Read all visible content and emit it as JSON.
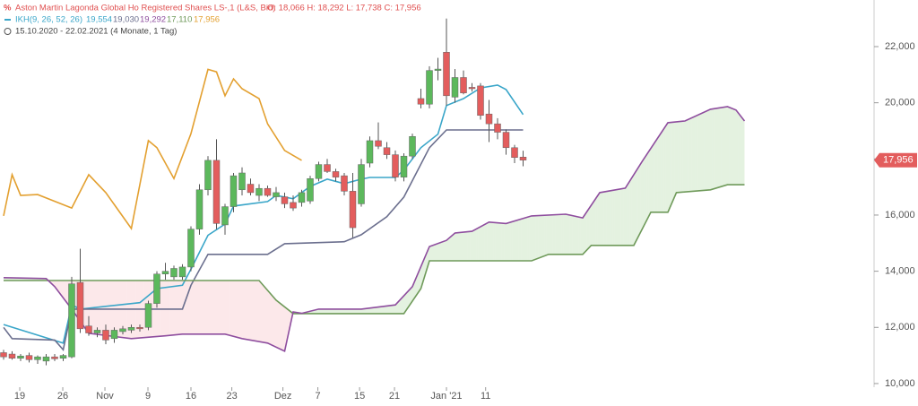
{
  "header": {
    "title": "Aston Martin Lagonda Global Ho Registered Shares LS-,1 (L&S, Bid)",
    "ohlc": "O: 18,066  H: 18,292  L: 17,738  C: 17,956",
    "indicator": "IKH(9, 26, 52, 26)",
    "indicator_values": [
      "19,554",
      "19,030",
      "19,292",
      "17,110",
      "17,956"
    ],
    "period": "15.10.2020 - 22.02.2021  (4 Monate, 1 Tag)"
  },
  "chart_data": {
    "type": "candlestick",
    "xlim": [
      -0.42,
      102.21
    ],
    "ylim": [
      9870,
      23660
    ],
    "xticks": [
      {
        "value": 1.9,
        "label": "19"
      },
      {
        "value": 6.95,
        "label": "26"
      },
      {
        "value": 11.9,
        "label": "Nov"
      },
      {
        "value": 16.95,
        "label": "9"
      },
      {
        "value": 22,
        "label": "16"
      },
      {
        "value": 26.8,
        "label": "23"
      },
      {
        "value": 32.8,
        "label": "Dez"
      },
      {
        "value": 36.9,
        "label": "7"
      },
      {
        "value": 41.8,
        "label": "15"
      },
      {
        "value": 45.9,
        "label": "21"
      },
      {
        "value": 52,
        "label": "Jan '21"
      },
      {
        "value": 56.6,
        "label": "11"
      }
    ],
    "yticks": [
      {
        "value": 10000,
        "label": "10,000"
      },
      {
        "value": 12000,
        "label": "12,000"
      },
      {
        "value": 14000,
        "label": "14,000"
      },
      {
        "value": 16000,
        "label": "16,000"
      },
      {
        "value": 18000,
        "label": "18,000"
      },
      {
        "value": 20000,
        "label": "20,000"
      },
      {
        "value": 22000,
        "label": "22,000"
      }
    ],
    "up_color": "#5cb85c",
    "down_color": "#e35d5d",
    "candles": {
      "x": [
        0,
        1,
        2,
        3,
        4,
        5,
        6,
        7,
        8,
        9,
        10,
        11,
        12,
        13,
        14,
        15,
        16,
        17,
        18,
        19,
        20,
        21,
        22,
        23,
        24,
        25,
        26,
        27,
        28,
        29,
        30,
        31,
        32,
        33,
        34,
        35,
        36,
        37,
        38,
        39,
        40,
        41,
        42,
        43,
        44,
        45,
        46,
        47,
        48,
        49,
        50,
        51,
        52,
        53,
        54,
        55,
        56,
        57,
        58,
        59,
        60,
        61
      ],
      "open": [
        11100,
        11050,
        10900,
        11000,
        10850,
        10800,
        10950,
        10900,
        10950,
        13600,
        12050,
        11800,
        11900,
        11600,
        11850,
        11900,
        12000,
        12000,
        12850,
        13900,
        13800,
        13800,
        14150,
        15500,
        16900,
        17950,
        15650,
        16300,
        16900,
        17100,
        16700,
        16950,
        16650,
        16650,
        16450,
        16450,
        16500,
        17300,
        17800,
        17550,
        17400,
        16850,
        16400,
        17850,
        18650,
        18400,
        18150,
        17350,
        18100,
        20150,
        19950,
        21150,
        21800,
        20200,
        20900,
        20550,
        20600,
        19600,
        19250,
        18950,
        18400,
        18066
      ],
      "high": [
        11200,
        11150,
        11050,
        11100,
        11000,
        11050,
        11050,
        11050,
        13800,
        14800,
        12400,
        12000,
        12100,
        12000,
        12050,
        12100,
        12100,
        12950,
        14000,
        14300,
        14200,
        14250,
        15600,
        17100,
        18100,
        18700,
        16400,
        17500,
        17700,
        17300,
        17100,
        17050,
        17000,
        16800,
        16700,
        16900,
        17400,
        17900,
        18000,
        17650,
        17500,
        17500,
        18000,
        18800,
        19300,
        18600,
        18300,
        18200,
        18900,
        20500,
        21300,
        21600,
        23000,
        21200,
        21150,
        20700,
        20700,
        20100,
        19450,
        19050,
        18500,
        18292
      ],
      "low": [
        10850,
        10850,
        10800,
        10750,
        10700,
        10650,
        10800,
        10800,
        10900,
        11800,
        11700,
        11650,
        11400,
        11450,
        11750,
        11800,
        11850,
        11900,
        12700,
        13700,
        13700,
        13700,
        14000,
        15300,
        16700,
        15500,
        15300,
        16100,
        16700,
        16700,
        16500,
        16650,
        16500,
        16250,
        16150,
        16300,
        16400,
        17200,
        17500,
        17200,
        16700,
        15200,
        16300,
        17700,
        18350,
        18000,
        17200,
        17200,
        18000,
        19800,
        19800,
        20800,
        19900,
        20000,
        20300,
        20400,
        19400,
        18600,
        18700,
        18150,
        17850,
        17738
      ],
      "close": [
        10950,
        10900,
        10980,
        10850,
        10950,
        10950,
        10880,
        11000,
        13550,
        11950,
        11800,
        11900,
        11550,
        11900,
        11950,
        12000,
        11950,
        12850,
        13900,
        14000,
        14100,
        14150,
        15500,
        16900,
        17950,
        15700,
        16300,
        17400,
        17500,
        16800,
        16950,
        16700,
        16800,
        16400,
        16250,
        16800,
        17300,
        17800,
        17550,
        17350,
        16850,
        15550,
        17800,
        18650,
        18450,
        18150,
        17350,
        18100,
        18800,
        19950,
        21150,
        21200,
        20250,
        20900,
        20350,
        20500,
        19550,
        19250,
        18950,
        18400,
        18050,
        17956
      ]
    },
    "lines": [
      {
        "color": "#e3a030",
        "x": [
          0,
          1,
          2,
          4,
          8,
          10,
          12,
          15,
          17,
          18,
          20,
          22,
          24,
          25,
          26,
          27,
          28,
          30,
          31,
          33,
          35
        ],
        "values": [
          15970,
          17440,
          16700,
          16730,
          16250,
          17440,
          16800,
          15520,
          18650,
          18400,
          17300,
          18900,
          21190,
          21100,
          20250,
          20850,
          20500,
          20150,
          19250,
          18300,
          17950
        ]
      },
      {
        "color": "#3aa6c9",
        "x": [
          0,
          7,
          8,
          9,
          16,
          18,
          21,
          22,
          24,
          26,
          27,
          31,
          32,
          34,
          36,
          38,
          40,
          42,
          43,
          46,
          47,
          49,
          51,
          52,
          54,
          56,
          58,
          59,
          61
        ],
        "values": [
          12100,
          11440,
          12800,
          12650,
          12880,
          13380,
          13500,
          14070,
          15280,
          15680,
          16320,
          16480,
          16700,
          16580,
          17020,
          17280,
          17120,
          17280,
          17340,
          17340,
          17600,
          18400,
          18880,
          19900,
          20150,
          20530,
          20630,
          20470,
          19580
        ]
      },
      {
        "color": "#6b6f8e",
        "x": [
          0,
          1,
          6,
          7,
          8,
          21,
          22,
          24,
          31,
          33,
          40,
          42,
          45,
          47,
          50,
          52,
          61
        ],
        "values": [
          12000,
          11600,
          11550,
          11200,
          12650,
          12650,
          13500,
          14600,
          14600,
          14980,
          15050,
          15300,
          15940,
          16640,
          18400,
          19030,
          19030
        ]
      },
      {
        "color": "#6f9a5a",
        "x": [
          0,
          30,
          32,
          34,
          47,
          49,
          50,
          62,
          64,
          68,
          69,
          74,
          76,
          78,
          79,
          83,
          85,
          87
        ],
        "values": [
          13670,
          13670,
          12970,
          12490,
          12490,
          13380,
          14370,
          14370,
          14600,
          14600,
          14920,
          14920,
          16100,
          16100,
          16800,
          16900,
          17080,
          17080
        ]
      },
      {
        "color": "#8e4d9e",
        "x": [
          0,
          5,
          6,
          8,
          10,
          15,
          19,
          21,
          26,
          28,
          31,
          33,
          34,
          35,
          37,
          42,
          46,
          48,
          50,
          52,
          53,
          55,
          57,
          59,
          62,
          66,
          68,
          70,
          73,
          75,
          78,
          80,
          83,
          85,
          86,
          87
        ],
        "values": [
          13770,
          13740,
          13450,
          12650,
          11790,
          11600,
          11700,
          11760,
          11760,
          11600,
          11440,
          11150,
          12550,
          12500,
          12650,
          12650,
          12800,
          13450,
          14880,
          15100,
          15360,
          15420,
          15750,
          15700,
          15970,
          16030,
          15900,
          16800,
          16960,
          17920,
          19290,
          19350,
          19770,
          19860,
          19740,
          19350
        ]
      }
    ],
    "last_price": {
      "value": 17956,
      "label": "17,956"
    }
  }
}
